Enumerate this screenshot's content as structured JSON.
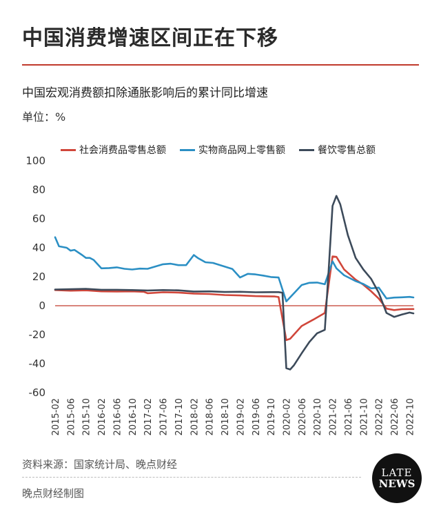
{
  "header": {
    "title": "中国消费增速区间正在下移",
    "subtitle": "中国宏观消费额扣除通胀影响后的累计同比增速",
    "unit": "单位：%"
  },
  "footer": {
    "source": "资料来源：国家统计局、晚点财经",
    "credit": "晚点财经制图",
    "logo_top": "LATE",
    "logo_bottom": "NEWS"
  },
  "chart_data": {
    "type": "line",
    "title": "",
    "xlabel": "",
    "ylabel": "",
    "ylim": [
      -60,
      100
    ],
    "yticks": [
      100,
      80,
      60,
      40,
      20,
      0,
      -20,
      -40,
      -60
    ],
    "x_tick_labels": [
      "2015-02",
      "2015-06",
      "2015-10",
      "2016-02",
      "2016-06",
      "2016-10",
      "2017-02",
      "2017-06",
      "2017-10",
      "2018-02",
      "2018-06",
      "2018-10",
      "2019-02",
      "2019-06",
      "2019-10",
      "2020-02",
      "2020-06",
      "2020-10",
      "2021-02",
      "2021-06",
      "2021-10",
      "2022-02",
      "2022-06",
      "2022-10"
    ],
    "x_start": "2015-02",
    "x_end": "2022-11",
    "zero_line": true,
    "grid": false,
    "legend_position": "top",
    "series": [
      {
        "name": "社会消费品零售总额",
        "color": "#d0463a",
        "points": [
          [
            "2015-02",
            10.8
          ],
          [
            "2015-06",
            10.4
          ],
          [
            "2015-10",
            10.6
          ],
          [
            "2016-02",
            9.9
          ],
          [
            "2016-06",
            9.8
          ],
          [
            "2016-10",
            9.9
          ],
          [
            "2017-01",
            9.6
          ],
          [
            "2017-02",
            8.6
          ],
          [
            "2017-06",
            9.3
          ],
          [
            "2017-10",
            9.1
          ],
          [
            "2018-02",
            8.4
          ],
          [
            "2018-06",
            8.1
          ],
          [
            "2018-10",
            7.4
          ],
          [
            "2019-02",
            7.1
          ],
          [
            "2019-06",
            6.6
          ],
          [
            "2019-11",
            6.4
          ],
          [
            "2019-12",
            6.0
          ],
          [
            "2020-02",
            -23.7
          ],
          [
            "2020-03",
            -22.8
          ],
          [
            "2020-06",
            -14.0
          ],
          [
            "2020-09",
            -9.6
          ],
          [
            "2020-12",
            -5.0
          ],
          [
            "2021-02",
            34.0
          ],
          [
            "2021-03",
            33.7
          ],
          [
            "2021-05",
            25.0
          ],
          [
            "2021-08",
            18.0
          ],
          [
            "2021-10",
            14.5
          ],
          [
            "2021-12",
            10.0
          ],
          [
            "2022-02",
            4.9
          ],
          [
            "2022-04",
            -2.0
          ],
          [
            "2022-06",
            -3.0
          ],
          [
            "2022-08",
            -2.4
          ],
          [
            "2022-11",
            -2.3
          ]
        ]
      },
      {
        "name": "实物商品网上零售额",
        "color": "#2b8fc4",
        "points": [
          [
            "2015-02",
            47.3
          ],
          [
            "2015-03",
            41.0
          ],
          [
            "2015-05",
            40.0
          ],
          [
            "2015-06",
            38.0
          ],
          [
            "2015-07",
            38.5
          ],
          [
            "2015-09",
            35.0
          ],
          [
            "2015-10",
            33.0
          ],
          [
            "2015-11",
            33.0
          ],
          [
            "2015-12",
            31.6
          ],
          [
            "2016-02",
            25.8
          ],
          [
            "2016-04",
            26.0
          ],
          [
            "2016-06",
            26.5
          ],
          [
            "2016-08",
            25.5
          ],
          [
            "2016-10",
            25.0
          ],
          [
            "2016-12",
            25.6
          ],
          [
            "2017-02",
            25.5
          ],
          [
            "2017-06",
            28.6
          ],
          [
            "2017-08",
            29.0
          ],
          [
            "2017-10",
            28.0
          ],
          [
            "2017-12",
            28.0
          ],
          [
            "2018-02",
            35.0
          ],
          [
            "2018-03",
            33.0
          ],
          [
            "2018-05",
            30.0
          ],
          [
            "2018-07",
            29.5
          ],
          [
            "2018-10",
            27.0
          ],
          [
            "2018-12",
            25.4
          ],
          [
            "2019-02",
            19.5
          ],
          [
            "2019-04",
            22.0
          ],
          [
            "2019-06",
            21.6
          ],
          [
            "2019-08",
            20.8
          ],
          [
            "2019-10",
            19.8
          ],
          [
            "2019-12",
            19.5
          ],
          [
            "2020-02",
            3.0
          ],
          [
            "2020-04",
            8.6
          ],
          [
            "2020-06",
            14.3
          ],
          [
            "2020-08",
            15.8
          ],
          [
            "2020-10",
            16.0
          ],
          [
            "2020-12",
            14.8
          ],
          [
            "2021-02",
            30.6
          ],
          [
            "2021-03",
            25.8
          ],
          [
            "2021-05",
            21.0
          ],
          [
            "2021-08",
            17.0
          ],
          [
            "2021-10",
            15.0
          ],
          [
            "2021-12",
            12.0
          ],
          [
            "2022-02",
            12.5
          ],
          [
            "2022-04",
            5.0
          ],
          [
            "2022-06",
            5.6
          ],
          [
            "2022-08",
            5.8
          ],
          [
            "2022-10",
            6.1
          ],
          [
            "2022-11",
            5.7
          ]
        ]
      },
      {
        "name": "餐饮零售总额",
        "color": "#3c4a5a",
        "points": [
          [
            "2015-02",
            11.2
          ],
          [
            "2015-06",
            11.4
          ],
          [
            "2015-10",
            11.6
          ],
          [
            "2016-02",
            11.0
          ],
          [
            "2016-06",
            11.0
          ],
          [
            "2016-10",
            10.8
          ],
          [
            "2017-02",
            10.5
          ],
          [
            "2017-06",
            10.8
          ],
          [
            "2017-10",
            10.6
          ],
          [
            "2018-02",
            9.8
          ],
          [
            "2018-06",
            9.9
          ],
          [
            "2018-10",
            9.5
          ],
          [
            "2019-02",
            9.6
          ],
          [
            "2019-06",
            9.3
          ],
          [
            "2019-10",
            9.4
          ],
          [
            "2019-12",
            9.4
          ],
          [
            "2020-01",
            9.0
          ],
          [
            "2020-02",
            -43.1
          ],
          [
            "2020-03",
            -44.0
          ],
          [
            "2020-04",
            -41.0
          ],
          [
            "2020-06",
            -32.8
          ],
          [
            "2020-08",
            -25.0
          ],
          [
            "2020-10",
            -19.0
          ],
          [
            "2020-12",
            -16.6
          ],
          [
            "2021-01",
            25.0
          ],
          [
            "2021-02",
            68.9
          ],
          [
            "2021-03",
            75.8
          ],
          [
            "2021-04",
            70.0
          ],
          [
            "2021-06",
            48.6
          ],
          [
            "2021-08",
            33.0
          ],
          [
            "2021-10",
            25.0
          ],
          [
            "2021-12",
            18.6
          ],
          [
            "2022-02",
            8.9
          ],
          [
            "2022-04",
            -5.0
          ],
          [
            "2022-06",
            -7.7
          ],
          [
            "2022-08",
            -6.1
          ],
          [
            "2022-10",
            -4.7
          ],
          [
            "2022-11",
            -5.3
          ]
        ]
      }
    ]
  }
}
